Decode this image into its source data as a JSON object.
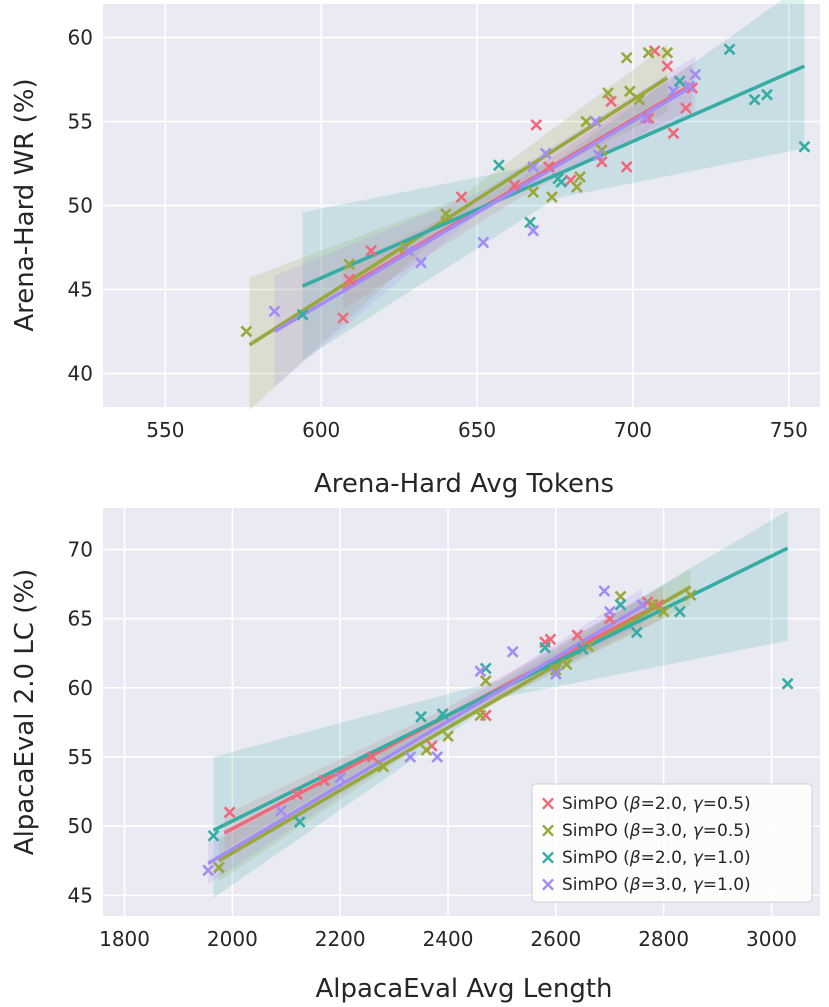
{
  "chart_data": [
    {
      "type": "scatter",
      "panel": "top",
      "xlabel": "Arena-Hard Avg Tokens",
      "ylabel": "Arena-Hard WR (%)",
      "xlim": [
        530,
        760
      ],
      "ylim": [
        38,
        62
      ],
      "xticks": [
        550,
        600,
        650,
        700,
        750
      ],
      "yticks": [
        40,
        45,
        50,
        55,
        60
      ],
      "grid": true,
      "series": [
        {
          "name": "SimPO (β=2.0, γ=0.5)",
          "color": "#f0697a",
          "points": [
            [
              607,
              43.3
            ],
            [
              609,
              45.6
            ],
            [
              616,
              47.3
            ],
            [
              645,
              50.5
            ],
            [
              662,
              51.2
            ],
            [
              669,
              54.8
            ],
            [
              673,
              52.3
            ],
            [
              680,
              51.5
            ],
            [
              690,
              52.6
            ],
            [
              693,
              56.2
            ],
            [
              698,
              52.3
            ],
            [
              705,
              55.2
            ],
            [
              707,
              59.2
            ],
            [
              711,
              58.3
            ],
            [
              713,
              54.3
            ],
            [
              717,
              55.8
            ],
            [
              719,
              57.0
            ]
          ],
          "fit": [
            [
              607,
              45.0
            ],
            [
              719,
              57.2
            ]
          ],
          "band": [
            [
              607,
              43.8,
              46.3
            ],
            [
              663,
              50.4,
              51.5
            ],
            [
              719,
              55.8,
              58.5
            ]
          ]
        },
        {
          "name": "SimPO (β=3.0, γ=0.5)",
          "color": "#9aa83a",
          "points": [
            [
              576,
              42.5
            ],
            [
              609,
              46.5
            ],
            [
              627,
              47.5
            ],
            [
              640,
              49.5
            ],
            [
              668,
              50.8
            ],
            [
              674,
              50.5
            ],
            [
              682,
              51.1
            ],
            [
              683,
              51.7
            ],
            [
              685,
              55.0
            ],
            [
              690,
              53.3
            ],
            [
              692,
              56.7
            ],
            [
              698,
              58.8
            ],
            [
              699,
              56.8
            ],
            [
              702,
              56.3
            ],
            [
              705,
              59.1
            ],
            [
              711,
              59.1
            ]
          ],
          "fit": [
            [
              577,
              41.7
            ],
            [
              711,
              57.6
            ]
          ],
          "band": [
            [
              577,
              37.8,
              45.7
            ],
            [
              644,
              49.3,
              50.4
            ],
            [
              711,
              55.6,
              59.6
            ]
          ]
        },
        {
          "name": "SimPO (β=2.0, γ=1.0)",
          "color": "#36ada4",
          "points": [
            [
              594,
              43.5
            ],
            [
              657,
              52.4
            ],
            [
              667,
              49.0
            ],
            [
              676,
              51.6
            ],
            [
              677,
              51.4
            ],
            [
              715,
              57.4
            ],
            [
              731,
              59.3
            ],
            [
              739,
              56.3
            ],
            [
              743,
              56.6
            ],
            [
              755,
              53.5
            ]
          ],
          "fit": [
            [
              594,
              45.2
            ],
            [
              755,
              58.3
            ]
          ],
          "band": [
            [
              594,
              40.8,
              49.6
            ],
            [
              675,
              50.4,
              52.6
            ],
            [
              755,
              53.4,
              63.2
            ]
          ]
        },
        {
          "name": "SimPO (β=3.0, γ=1.0)",
          "color": "#a48cf4",
          "points": [
            [
              585,
              43.7
            ],
            [
              628,
              47.3
            ],
            [
              632,
              46.6
            ],
            [
              652,
              47.8
            ],
            [
              668,
              48.5
            ],
            [
              668,
              52.3
            ],
            [
              672,
              53.1
            ],
            [
              688,
              55.0
            ],
            [
              689,
              53.0
            ],
            [
              704,
              55.2
            ],
            [
              713,
              56.8
            ],
            [
              718,
              57.1
            ],
            [
              720,
              57.8
            ]
          ],
          "fit": [
            [
              585,
              42.5
            ],
            [
              720,
              57.2
            ]
          ],
          "band": [
            [
              585,
              39.2,
              45.8
            ],
            [
              652,
              49.8,
              50.9
            ],
            [
              720,
              55.5,
              58.9
            ]
          ]
        }
      ]
    },
    {
      "type": "scatter",
      "panel": "bottom",
      "xlabel": "AlpacaEval Avg Length",
      "ylabel": "AlpacaEval 2.0 LC (%)",
      "xlim": [
        1760,
        3090
      ],
      "ylim": [
        43.5,
        73
      ],
      "xticks": [
        1800,
        2000,
        2200,
        2400,
        2600,
        2800,
        3000
      ],
      "yticks": [
        45,
        50,
        55,
        60,
        65,
        70
      ],
      "grid": true,
      "legend_position": "bottom-right",
      "series": [
        {
          "name": "SimPO (β=2.0, γ=0.5)",
          "color": "#f0697a",
          "points": [
            [
              1995,
              51.0
            ],
            [
              2120,
              52.3
            ],
            [
              2170,
              53.3
            ],
            [
              2260,
              55.0
            ],
            [
              2370,
              55.8
            ],
            [
              2470,
              58.0
            ],
            [
              2580,
              63.3
            ],
            [
              2590,
              63.5
            ],
            [
              2640,
              63.8
            ],
            [
              2700,
              65.0
            ],
            [
              2770,
              66.2
            ],
            [
              2790,
              66.0
            ]
          ],
          "fit": [
            [
              1985,
              49.5
            ],
            [
              2800,
              66.2
            ]
          ],
          "band": [
            [
              1985,
              48.3,
              50.8
            ],
            [
              2390,
              57.5,
              58.4
            ],
            [
              2800,
              65.0,
              67.4
            ]
          ]
        },
        {
          "name": "SimPO (β=3.0, γ=0.5)",
          "color": "#9aa83a",
          "points": [
            [
              1975,
              47.0
            ],
            [
              2280,
              54.3
            ],
            [
              2360,
              55.5
            ],
            [
              2400,
              56.5
            ],
            [
              2460,
              58.0
            ],
            [
              2470,
              60.5
            ],
            [
              2600,
              61.3
            ],
            [
              2620,
              61.7
            ],
            [
              2660,
              63.0
            ],
            [
              2720,
              66.6
            ],
            [
              2780,
              66.0
            ],
            [
              2800,
              65.5
            ],
            [
              2850,
              66.7
            ]
          ],
          "fit": [
            [
              1975,
              47.5
            ],
            [
              2850,
              67.3
            ]
          ],
          "band": [
            [
              1975,
              46.0,
              49.0
            ],
            [
              2410,
              57.4,
              58.2
            ],
            [
              2850,
              66.0,
              68.6
            ]
          ]
        },
        {
          "name": "SimPO (β=2.0, γ=1.0)",
          "color": "#36ada4",
          "points": [
            [
              1965,
              49.3
            ],
            [
              2125,
              50.3
            ],
            [
              2350,
              57.9
            ],
            [
              2390,
              58.1
            ],
            [
              2470,
              61.4
            ],
            [
              2580,
              62.9
            ],
            [
              2650,
              62.8
            ],
            [
              2720,
              66.0
            ],
            [
              2750,
              64.0
            ],
            [
              2830,
              65.5
            ],
            [
              3030,
              60.3
            ]
          ],
          "fit": [
            [
              1965,
              49.7
            ],
            [
              3030,
              70.1
            ]
          ],
          "band": [
            [
              1965,
              44.8,
              55.0
            ],
            [
              2500,
              59.3,
              60.6
            ],
            [
              3030,
              63.4,
              72.8
            ]
          ]
        },
        {
          "name": "SimPO (β=3.0, γ=1.0)",
          "color": "#a48cf4",
          "points": [
            [
              1955,
              46.8
            ],
            [
              2090,
              51.1
            ],
            [
              2200,
              53.5
            ],
            [
              2330,
              55.0
            ],
            [
              2380,
              55.0
            ],
            [
              2460,
              61.2
            ],
            [
              2520,
              62.6
            ],
            [
              2600,
              61.0
            ],
            [
              2690,
              67.0
            ],
            [
              2700,
              65.5
            ],
            [
              2760,
              66.0
            ]
          ],
          "fit": [
            [
              1955,
              47.3
            ],
            [
              2760,
              65.9
            ]
          ],
          "band": [
            [
              1955,
              45.8,
              48.8
            ],
            [
              2360,
              56.3,
              57.2
            ],
            [
              2760,
              64.6,
              67.2
            ]
          ]
        }
      ]
    }
  ],
  "legend": {
    "entries": [
      {
        "prefix": "SimPO (",
        "beta_symbol": "β",
        "beta_value": "=2.0, ",
        "gamma_symbol": "γ",
        "gamma_value": "=0.5)",
        "color": "#f0697a"
      },
      {
        "prefix": "SimPO (",
        "beta_symbol": "β",
        "beta_value": "=3.0, ",
        "gamma_symbol": "γ",
        "gamma_value": "=0.5)",
        "color": "#9aa83a"
      },
      {
        "prefix": "SimPO (",
        "beta_symbol": "β",
        "beta_value": "=2.0, ",
        "gamma_symbol": "γ",
        "gamma_value": "=1.0)",
        "color": "#36ada4"
      },
      {
        "prefix": "SimPO (",
        "beta_symbol": "β",
        "beta_value": "=3.0, ",
        "gamma_symbol": "γ",
        "gamma_value": "=1.0)",
        "color": "#a48cf4"
      }
    ]
  }
}
